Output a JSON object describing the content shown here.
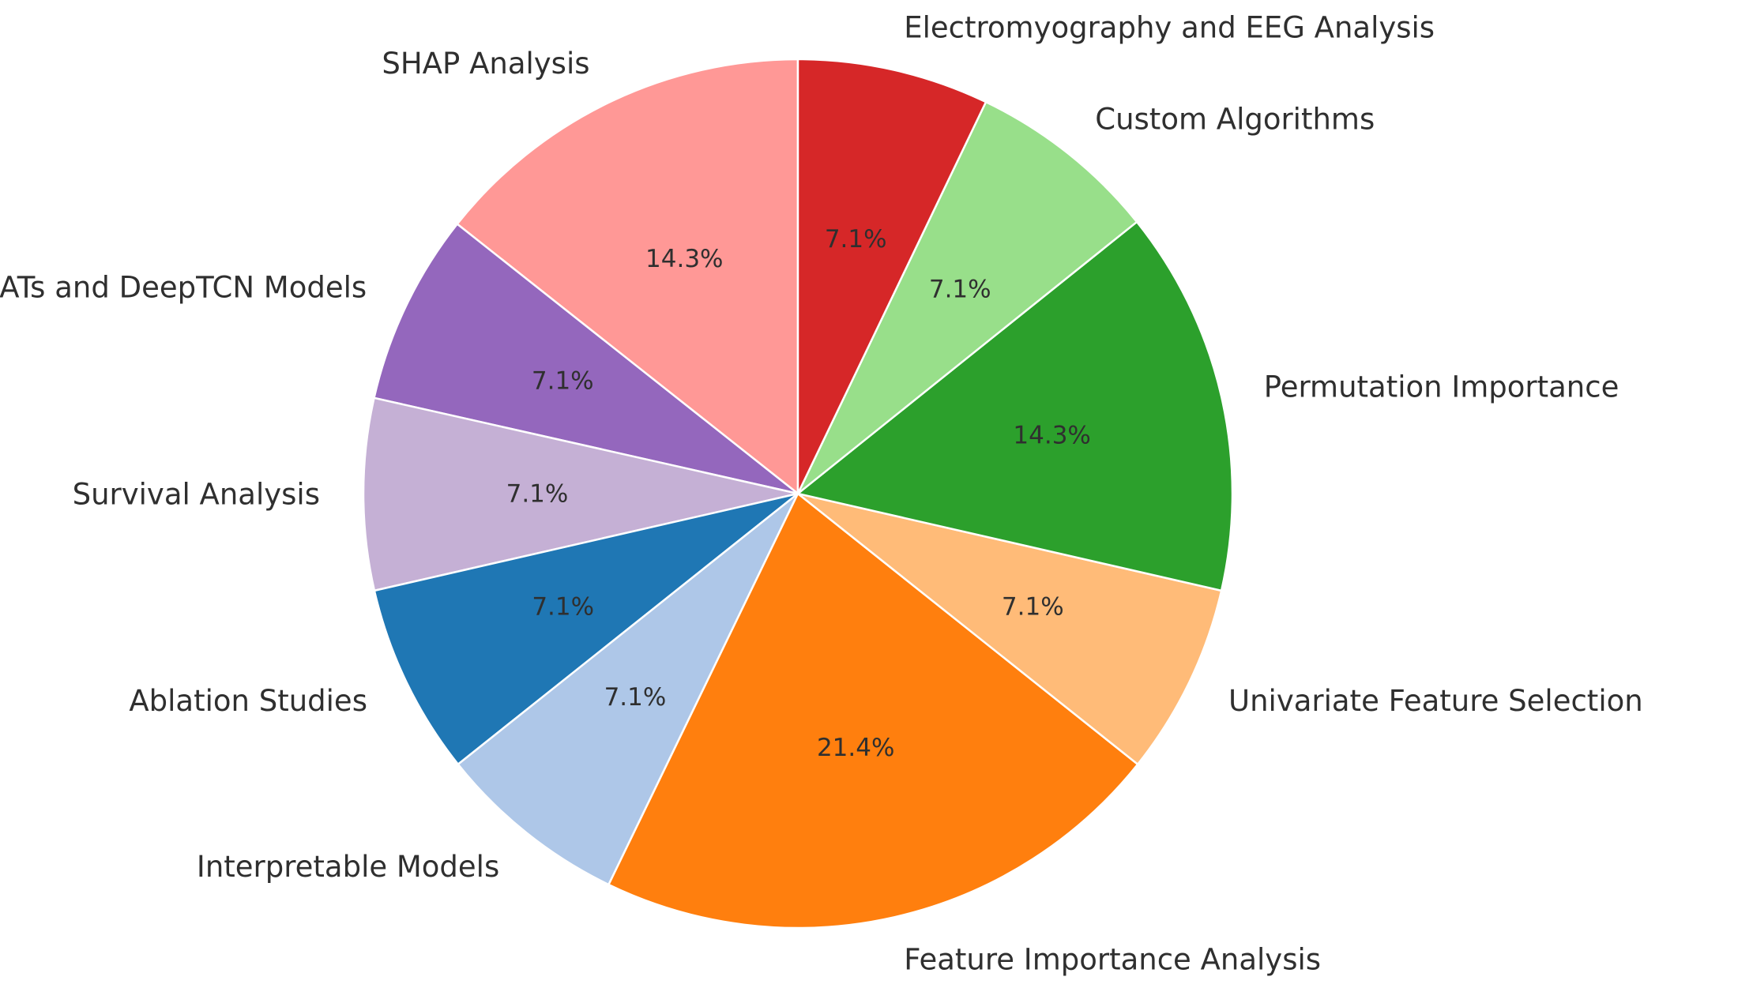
{
  "chart_data": {
    "type": "pie",
    "title": "",
    "slices": [
      {
        "label": "SHAP Analysis",
        "value": 14.3,
        "pct_label": "14.3%",
        "color": "#ff9896"
      },
      {
        "label": "NBEATs and DeepTCN Models",
        "value": 7.1,
        "pct_label": "7.1%",
        "color": "#9467bd"
      },
      {
        "label": "Survival Analysis",
        "value": 7.1,
        "pct_label": "7.1%",
        "color": "#c5b0d5"
      },
      {
        "label": "Ablation Studies",
        "value": 7.1,
        "pct_label": "7.1%",
        "color": "#1f77b4"
      },
      {
        "label": "Interpretable Models",
        "value": 7.1,
        "pct_label": "7.1%",
        "color": "#aec7e8"
      },
      {
        "label": "Feature Importance Analysis",
        "value": 21.4,
        "pct_label": "21.4%",
        "color": "#ff7f0e"
      },
      {
        "label": "Univariate Feature Selection",
        "value": 7.1,
        "pct_label": "7.1%",
        "color": "#ffbb78"
      },
      {
        "label": "Permutation Importance",
        "value": 14.3,
        "pct_label": "14.3%",
        "color": "#2ca02c"
      },
      {
        "label": "Custom Algorithms",
        "value": 7.1,
        "pct_label": "7.1%",
        "color": "#98df8a"
      },
      {
        "label": "Electromyography and EEG Analysis",
        "value": 7.1,
        "pct_label": "7.1%",
        "color": "#d62728"
      }
    ],
    "start_angle_deg": 90,
    "direction": "counterclockwise"
  }
}
